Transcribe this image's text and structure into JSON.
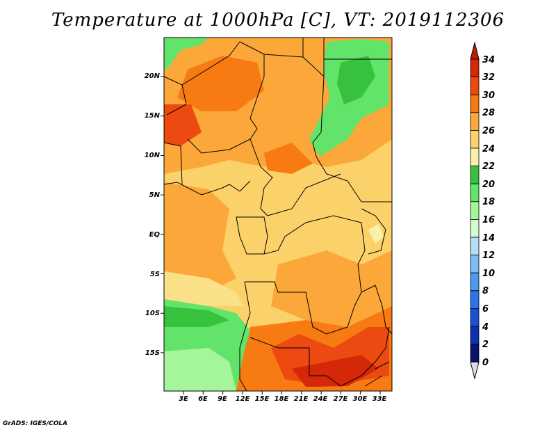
{
  "title": "Temperature at 1000hPa [C], VT: 2019112306",
  "footer": "GrADS: IGES/COLA",
  "map": {
    "lat_labels": [
      "20N",
      "15N",
      "10N",
      "5N",
      "EQ",
      "5S",
      "10S",
      "15S"
    ],
    "lon_labels": [
      "3E",
      "6E",
      "9E",
      "12E",
      "15E",
      "18E",
      "21E",
      "24E",
      "27E",
      "30E",
      "33E"
    ]
  },
  "colorbar": {
    "labels": [
      "34",
      "32",
      "30",
      "28",
      "26",
      "24",
      "22",
      "20",
      "18",
      "16",
      "14",
      "12",
      "10",
      "8",
      "6",
      "4",
      "2",
      "0"
    ],
    "colors": [
      "#d42808",
      "#ec4a10",
      "#f77a12",
      "#fba73a",
      "#fbd26a",
      "#fbf0aa",
      "#36c23c",
      "#62e36a",
      "#a5f59b",
      "#d6fbd1",
      "#b3e0f7",
      "#7ebdf2",
      "#4e99ee",
      "#2e73e8",
      "#1b4fd4",
      "#0d31b1",
      "#0a1470"
    ],
    "under_color": "#e2d8f4",
    "over_color": "#bf1c08"
  }
}
